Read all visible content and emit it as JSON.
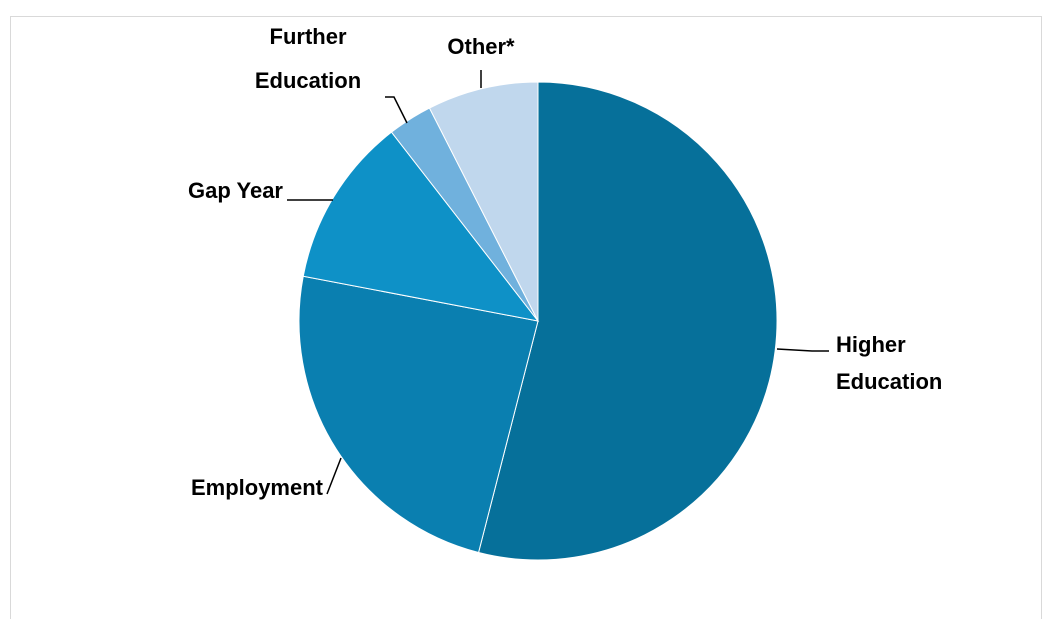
{
  "chart_data": {
    "type": "pie",
    "title": "",
    "slices": [
      {
        "label": [
          "Higher",
          "Education"
        ],
        "value": 54,
        "color": "#06709a"
      },
      {
        "label": [
          "Employment"
        ],
        "value": 24,
        "color": "#0a7fb0"
      },
      {
        "label": [
          "Gap Year"
        ],
        "value": 11.5,
        "color": "#0e91c7"
      },
      {
        "label": [
          "Further",
          "Education"
        ],
        "value": 3,
        "color": "#70b1dd"
      },
      {
        "label": [
          "Other*"
        ],
        "value": 7.5,
        "color": "#c0d7ed"
      }
    ],
    "start": "12 o'clock",
    "direction": "clockwise",
    "legend": "none",
    "data_labels": "category names with leader lines"
  }
}
